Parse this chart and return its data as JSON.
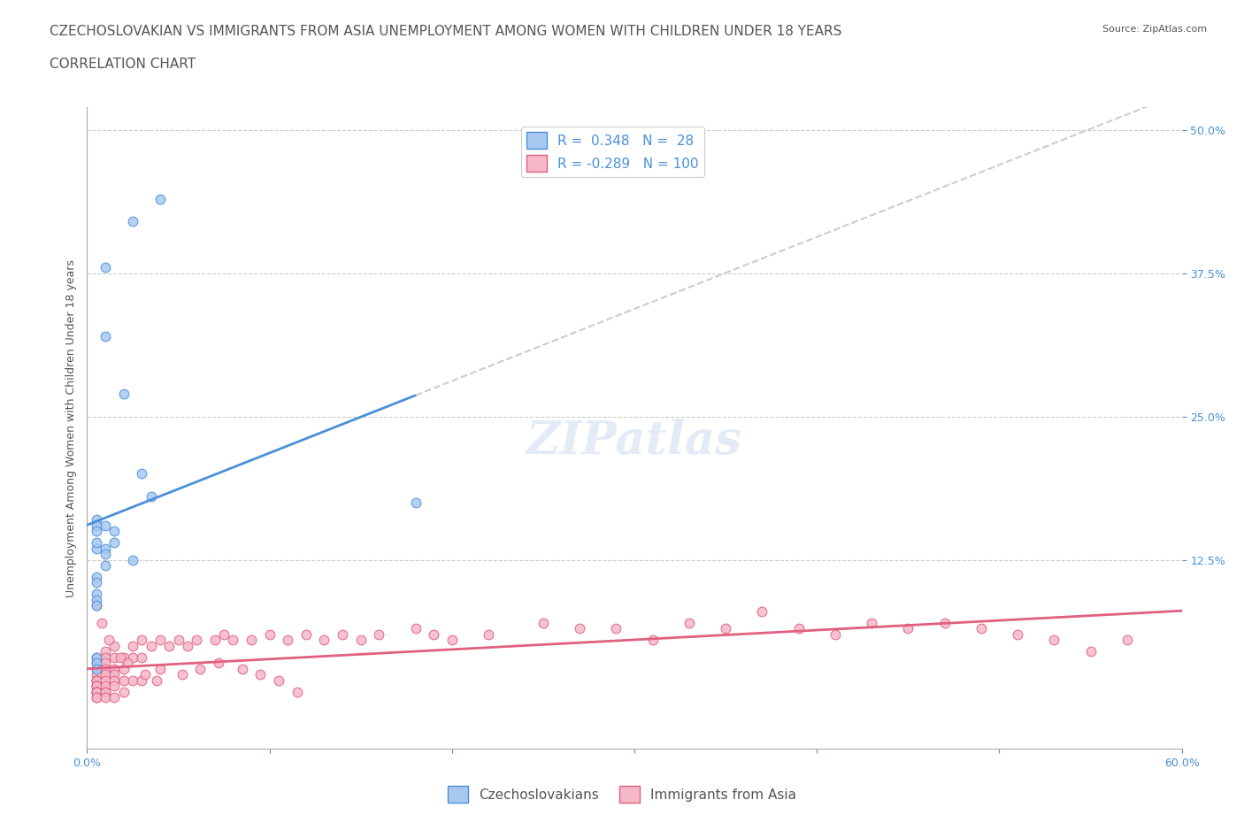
{
  "title_line1": "CZECHOSLOVAKIAN VS IMMIGRANTS FROM ASIA UNEMPLOYMENT AMONG WOMEN WITH CHILDREN UNDER 18 YEARS",
  "title_line2": "CORRELATION CHART",
  "source_text": "Source: ZipAtlas.com",
  "ylabel": "Unemployment Among Women with Children Under 18 years",
  "xlabel_ticks": [
    "0.0%",
    "60.0%"
  ],
  "ytick_labels": [
    "50.0%",
    "37.5%",
    "25.0%",
    "12.5%"
  ],
  "ytick_values": [
    0.5,
    0.375,
    0.25,
    0.125
  ],
  "xlim": [
    0.0,
    0.6
  ],
  "ylim": [
    -0.04,
    0.52
  ],
  "watermark": "ZIPatlas",
  "czech_R": 0.348,
  "czech_N": 28,
  "asia_R": -0.289,
  "asia_N": 100,
  "czech_color": "#a8c8f0",
  "czech_line_color": "#4a90d9",
  "asia_color": "#f5b8c8",
  "asia_line_color": "#e06080",
  "czech_scatter_x": [
    0.01,
    0.025,
    0.04,
    0.01,
    0.02,
    0.005,
    0.005,
    0.005,
    0.01,
    0.015,
    0.005,
    0.03,
    0.015,
    0.01,
    0.005,
    0.01,
    0.025,
    0.01,
    0.005,
    0.005,
    0.005,
    0.005,
    0.005,
    0.035,
    0.18,
    0.005,
    0.005,
    0.005
  ],
  "czech_scatter_y": [
    0.38,
    0.42,
    0.44,
    0.32,
    0.27,
    0.16,
    0.155,
    0.15,
    0.155,
    0.15,
    0.135,
    0.2,
    0.14,
    0.135,
    0.14,
    0.13,
    0.125,
    0.12,
    0.11,
    0.105,
    0.095,
    0.09,
    0.085,
    0.18,
    0.175,
    0.04,
    0.035,
    0.03
  ],
  "asia_scatter_x": [
    0.005,
    0.005,
    0.005,
    0.005,
    0.005,
    0.005,
    0.005,
    0.005,
    0.005,
    0.005,
    0.005,
    0.005,
    0.005,
    0.005,
    0.005,
    0.005,
    0.005,
    0.005,
    0.005,
    0.005,
    0.01,
    0.01,
    0.01,
    0.01,
    0.01,
    0.01,
    0.01,
    0.01,
    0.01,
    0.01,
    0.015,
    0.015,
    0.015,
    0.015,
    0.015,
    0.015,
    0.015,
    0.02,
    0.02,
    0.02,
    0.02,
    0.025,
    0.025,
    0.025,
    0.03,
    0.03,
    0.03,
    0.035,
    0.04,
    0.04,
    0.045,
    0.05,
    0.055,
    0.06,
    0.07,
    0.075,
    0.08,
    0.09,
    0.1,
    0.11,
    0.12,
    0.13,
    0.14,
    0.15,
    0.16,
    0.18,
    0.19,
    0.2,
    0.22,
    0.25,
    0.27,
    0.29,
    0.31,
    0.33,
    0.35,
    0.37,
    0.39,
    0.41,
    0.43,
    0.45,
    0.47,
    0.49,
    0.51,
    0.53,
    0.55,
    0.57,
    0.005,
    0.008,
    0.012,
    0.018,
    0.022,
    0.032,
    0.038,
    0.052,
    0.062,
    0.072,
    0.085,
    0.095,
    0.105,
    0.115
  ],
  "asia_scatter_y": [
    0.04,
    0.035,
    0.03,
    0.025,
    0.02,
    0.02,
    0.02,
    0.02,
    0.015,
    0.015,
    0.015,
    0.015,
    0.01,
    0.01,
    0.01,
    0.01,
    0.01,
    0.01,
    0.005,
    0.005,
    0.045,
    0.04,
    0.035,
    0.03,
    0.025,
    0.02,
    0.015,
    0.01,
    0.01,
    0.005,
    0.05,
    0.04,
    0.03,
    0.025,
    0.02,
    0.015,
    0.005,
    0.04,
    0.03,
    0.02,
    0.01,
    0.05,
    0.04,
    0.02,
    0.055,
    0.04,
    0.02,
    0.05,
    0.055,
    0.03,
    0.05,
    0.055,
    0.05,
    0.055,
    0.055,
    0.06,
    0.055,
    0.055,
    0.06,
    0.055,
    0.06,
    0.055,
    0.06,
    0.055,
    0.06,
    0.065,
    0.06,
    0.055,
    0.06,
    0.07,
    0.065,
    0.065,
    0.055,
    0.07,
    0.065,
    0.08,
    0.065,
    0.06,
    0.07,
    0.065,
    0.07,
    0.065,
    0.06,
    0.055,
    0.045,
    0.055,
    0.085,
    0.07,
    0.055,
    0.04,
    0.035,
    0.025,
    0.02,
    0.025,
    0.03,
    0.035,
    0.03,
    0.025,
    0.02,
    0.01
  ],
  "title_fontsize": 11,
  "subtitle_fontsize": 11,
  "axis_label_fontsize": 9,
  "tick_fontsize": 9,
  "legend_fontsize": 11,
  "watermark_fontsize": 38,
  "title_color": "#555555",
  "tick_color": "#4a90d9",
  "grid_color": "#cccccc",
  "background_color": "#ffffff"
}
